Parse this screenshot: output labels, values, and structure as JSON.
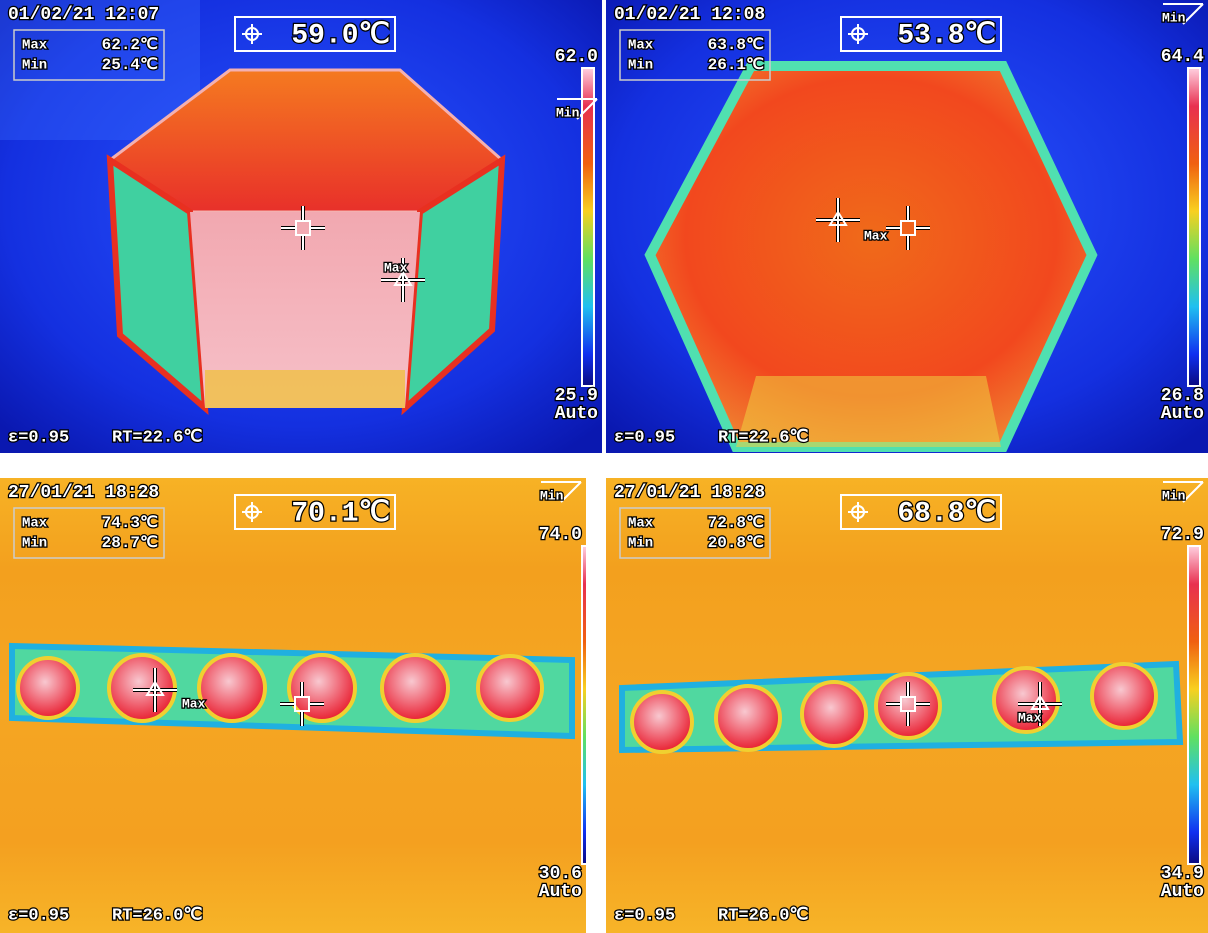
{
  "panels": [
    {
      "date_time": "01/02/21 12:07",
      "spot_temp": "59.0℃",
      "max_label": "Max",
      "max_value": "62.2℃",
      "min_label": "Min",
      "min_value": "25.4℃",
      "scale_max": "62.0",
      "scale_min": "25.9",
      "range_mode": "Auto",
      "emissivity": "ε=0.95",
      "room_temp": "RT=22.6℃",
      "marker_label": "Max",
      "scale_marker": "Min"
    },
    {
      "date_time": "01/02/21 12:08",
      "spot_temp": "53.8℃",
      "max_label": "Max",
      "max_value": "63.8℃",
      "min_label": "Min",
      "min_value": "26.1℃",
      "scale_max": "64.4",
      "scale_min": "26.8",
      "range_mode": "Auto",
      "emissivity": "ε=0.95",
      "room_temp": "RT=22.6℃",
      "marker_label": "Max",
      "scale_marker": "Min"
    },
    {
      "date_time": "27/01/21 18:28",
      "spot_temp": "70.1℃",
      "max_label": "Max",
      "max_value": "74.3℃",
      "min_label": "Min",
      "min_value": "28.7℃",
      "scale_max": "74.0",
      "scale_min": "30.6",
      "range_mode": "Auto",
      "emissivity": "ε=0.95",
      "room_temp": "RT=26.0℃",
      "marker_label": "Max",
      "scale_marker": "Min"
    },
    {
      "date_time": "27/01/21 18:28",
      "spot_temp": "68.8℃",
      "max_label": "Max",
      "max_value": "72.8℃",
      "min_label": "Min",
      "min_value": "20.8℃",
      "scale_max": "72.9",
      "scale_min": "34.9",
      "range_mode": "Auto",
      "emissivity": "ε=0.95",
      "room_temp": "RT=26.0℃",
      "marker_label": "Max",
      "scale_marker": "Min"
    }
  ]
}
